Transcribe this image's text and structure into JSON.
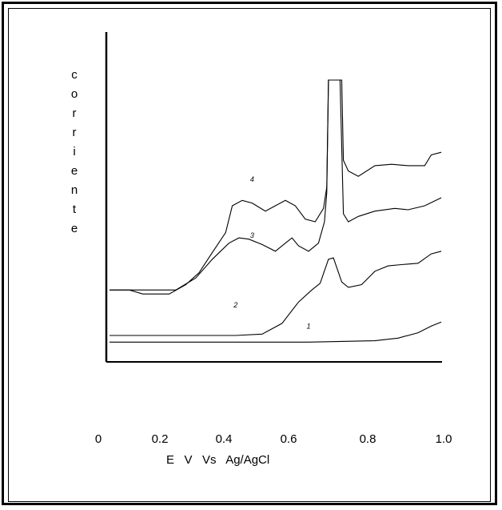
{
  "chart_data": {
    "type": "line",
    "title": "",
    "xlabel": "E   V   Vs   Ag/AgCl",
    "ylabel": "corriente",
    "xlim": [
      0,
      1.0
    ],
    "x_ticks": [
      "0",
      "0.2",
      "0.4",
      "0.6",
      "0.8",
      "1.0"
    ],
    "grid": false,
    "legend": "none",
    "series": [
      {
        "name": "1",
        "points": [
          [
            0.0,
            0.02
          ],
          [
            0.2,
            0.02
          ],
          [
            0.4,
            0.02
          ],
          [
            0.6,
            0.02
          ],
          [
            0.8,
            0.025
          ],
          [
            0.87,
            0.035
          ],
          [
            0.93,
            0.055
          ],
          [
            0.97,
            0.08
          ],
          [
            1.0,
            0.095
          ]
        ]
      },
      {
        "name": "2",
        "points": [
          [
            0.0,
            0.045
          ],
          [
            0.2,
            0.045
          ],
          [
            0.38,
            0.045
          ],
          [
            0.46,
            0.05
          ],
          [
            0.52,
            0.09
          ],
          [
            0.57,
            0.17
          ],
          [
            0.61,
            0.215
          ],
          [
            0.635,
            0.24
          ],
          [
            0.66,
            0.33
          ],
          [
            0.675,
            0.335
          ],
          [
            0.7,
            0.245
          ],
          [
            0.72,
            0.225
          ],
          [
            0.76,
            0.235
          ],
          [
            0.8,
            0.285
          ],
          [
            0.84,
            0.305
          ],
          [
            0.88,
            0.31
          ],
          [
            0.93,
            0.315
          ],
          [
            0.97,
            0.35
          ],
          [
            1.0,
            0.36
          ]
        ]
      },
      {
        "name": "3",
        "points": [
          [
            0.0,
            0.215
          ],
          [
            0.2,
            0.215
          ],
          [
            0.26,
            0.26
          ],
          [
            0.31,
            0.33
          ],
          [
            0.36,
            0.39
          ],
          [
            0.39,
            0.41
          ],
          [
            0.42,
            0.405
          ],
          [
            0.46,
            0.385
          ],
          [
            0.5,
            0.36
          ],
          [
            0.53,
            0.39
          ],
          [
            0.55,
            0.41
          ],
          [
            0.57,
            0.38
          ],
          [
            0.6,
            0.36
          ],
          [
            0.63,
            0.39
          ],
          [
            0.648,
            0.47
          ],
          [
            0.655,
            0.58
          ],
          [
            0.66,
            1.0
          ],
          [
            0.695,
            1.0
          ],
          [
            0.705,
            0.5
          ],
          [
            0.72,
            0.47
          ],
          [
            0.75,
            0.49
          ],
          [
            0.8,
            0.51
          ],
          [
            0.86,
            0.52
          ],
          [
            0.9,
            0.515
          ],
          [
            0.95,
            0.53
          ],
          [
            1.0,
            0.56
          ]
        ]
      },
      {
        "name": "4",
        "points": [
          [
            0.0,
            0.215
          ],
          [
            0.06,
            0.215
          ],
          [
            0.1,
            0.2
          ],
          [
            0.18,
            0.2
          ],
          [
            0.23,
            0.235
          ],
          [
            0.27,
            0.28
          ],
          [
            0.31,
            0.355
          ],
          [
            0.35,
            0.43
          ],
          [
            0.37,
            0.53
          ],
          [
            0.4,
            0.55
          ],
          [
            0.43,
            0.54
          ],
          [
            0.47,
            0.51
          ],
          [
            0.5,
            0.53
          ],
          [
            0.53,
            0.55
          ],
          [
            0.56,
            0.53
          ],
          [
            0.59,
            0.48
          ],
          [
            0.62,
            0.47
          ],
          [
            0.645,
            0.52
          ],
          [
            0.655,
            0.6
          ],
          [
            0.66,
            1.0
          ],
          [
            0.7,
            1.0
          ],
          [
            0.705,
            0.7
          ],
          [
            0.72,
            0.66
          ],
          [
            0.75,
            0.64
          ],
          [
            0.8,
            0.68
          ],
          [
            0.85,
            0.685
          ],
          [
            0.9,
            0.68
          ],
          [
            0.95,
            0.68
          ],
          [
            0.97,
            0.72
          ],
          [
            1.0,
            0.73
          ]
        ]
      }
    ]
  }
}
